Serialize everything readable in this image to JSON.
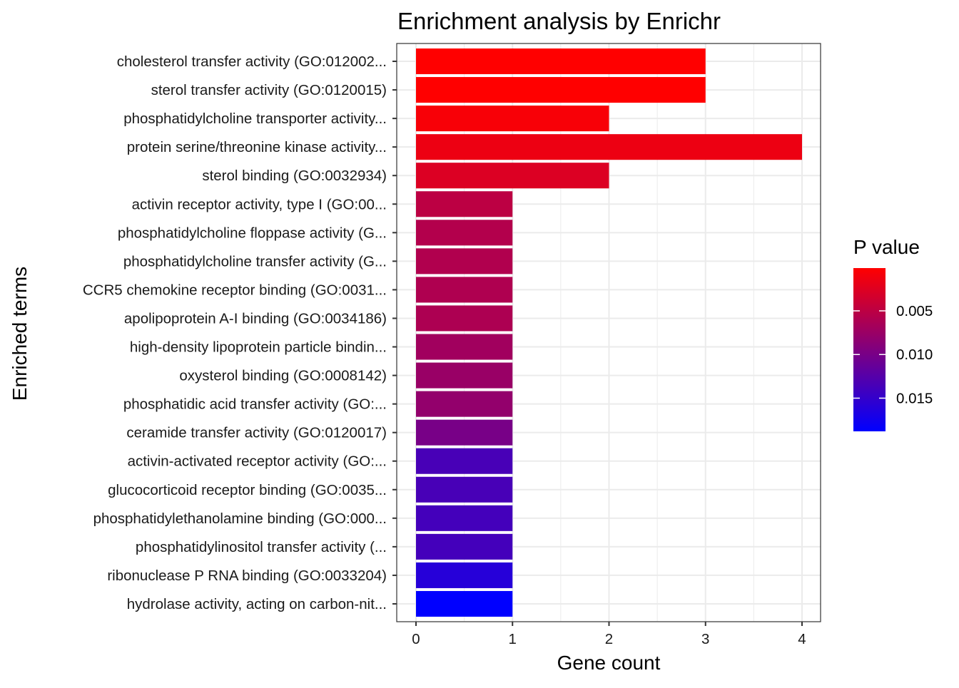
{
  "chart_data": {
    "type": "bar",
    "orientation": "horizontal",
    "title": "Enrichment analysis by Enrichr",
    "xlabel": "Gene count",
    "ylabel": "Enriched terms",
    "xlim": [
      0,
      4.2
    ],
    "x_ticks": [
      "0",
      "1",
      "2",
      "3",
      "4"
    ],
    "grid": true,
    "categories": [
      "cholesterol transfer activity (GO:012002...",
      "sterol transfer activity (GO:0120015)",
      "phosphatidylcholine transporter activity...",
      "protein serine/threonine kinase activity...",
      "sterol binding (GO:0032934)",
      "activin receptor activity, type I (GO:00...",
      "phosphatidylcholine floppase activity (G...",
      "phosphatidylcholine transfer activity (G...",
      "CCR5 chemokine receptor binding (GO:0031...",
      "apolipoprotein A-I binding (GO:0034186)",
      "high-density lipoprotein particle bindin...",
      "oxysterol binding (GO:0008142)",
      "phosphatidic acid transfer activity (GO:...",
      "ceramide transfer activity (GO:0120017)",
      "activin-activated receptor activity (GO:...",
      "glucocorticoid receptor binding (GO:0035...",
      "phosphatidylethanolamine binding (GO:000...",
      "phosphatidylinositol transfer activity (...",
      "ribonuclease P RNA binding (GO:0033204)",
      "hydrolase activity, acting on carbon-nit..."
    ],
    "values": [
      3,
      3,
      2,
      4,
      2,
      1,
      1,
      1,
      1,
      1,
      1,
      1,
      1,
      1,
      1,
      1,
      1,
      1,
      1,
      1
    ],
    "p_values": [
      0.0001,
      0.0001,
      0.0006,
      0.0014,
      0.0027,
      0.005,
      0.0057,
      0.0058,
      0.006,
      0.0061,
      0.007,
      0.0076,
      0.008,
      0.01,
      0.0135,
      0.0135,
      0.0138,
      0.0138,
      0.016,
      0.0188
    ],
    "legend": {
      "title": "P value",
      "placement": "right",
      "ticks": [
        "0.005",
        "0.010",
        "0.015"
      ],
      "tick_values": [
        0.005,
        0.01,
        0.015
      ],
      "range": [
        0.0001,
        0.0188
      ],
      "color_low": "#ff0000",
      "color_high": "#0000ff"
    }
  }
}
